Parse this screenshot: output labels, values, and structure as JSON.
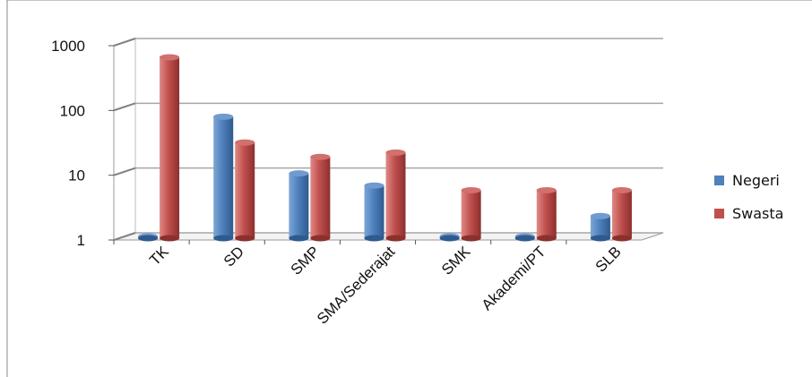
{
  "chart_data": {
    "type": "bar",
    "style": "3d-clustered-column",
    "yscale": "log",
    "ylim": [
      1,
      1000
    ],
    "yticks": [
      "1",
      "10",
      "100",
      "1000"
    ],
    "categories": [
      "TK",
      "SD",
      "SMP",
      "SMA/Sederajat",
      "SMK",
      "Akademi/PT",
      "SLB"
    ],
    "series": [
      {
        "name": "Negeri",
        "color": "#4f81bd",
        "values": [
          1,
          75,
          10,
          6.5,
          1,
          1,
          2.2
        ]
      },
      {
        "name": "Swasta",
        "color": "#c0504d",
        "values": [
          620,
          30,
          18,
          21,
          5.5,
          5.5,
          5.5
        ]
      }
    ],
    "legend_position": "right",
    "grid": true
  }
}
